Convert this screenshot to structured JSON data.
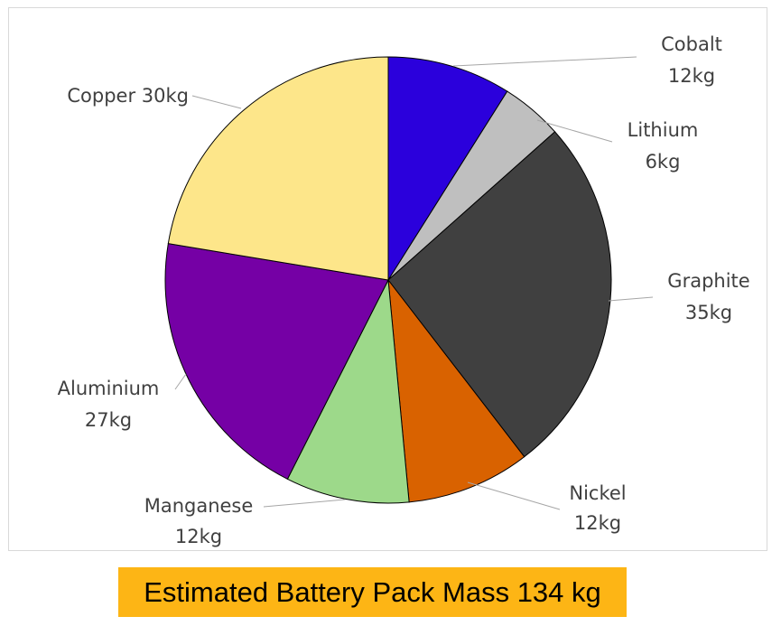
{
  "chart_data": {
    "type": "pie",
    "slices": [
      {
        "name": "Cobalt",
        "value": 12,
        "value_label": "12kg",
        "color": "#2B00DC"
      },
      {
        "name": "Lithium",
        "value": 6,
        "value_label": "6kg",
        "color": "#BFBFBF"
      },
      {
        "name": "Graphite",
        "value": 35,
        "value_label": "35kg",
        "color": "#404040"
      },
      {
        "name": "Nickel",
        "value": 12,
        "value_label": "12kg",
        "color": "#D96200"
      },
      {
        "name": "Manganese",
        "value": 12,
        "value_label": "12kg",
        "color": "#9DD98A"
      },
      {
        "name": "Aluminium",
        "value": 27,
        "value_label": "27kg",
        "color": "#7500A5"
      },
      {
        "name": "Copper",
        "value": 30,
        "value_label": "30kg",
        "color": "#FDE68A"
      }
    ],
    "start": "12 o'clock",
    "direction": "clockwise",
    "title": "Estimated Battery Pack Mass 134 kg"
  }
}
